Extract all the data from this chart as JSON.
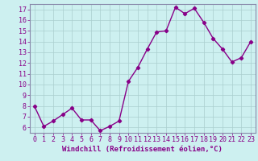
{
  "x": [
    0,
    1,
    2,
    3,
    4,
    5,
    6,
    7,
    8,
    9,
    10,
    11,
    12,
    13,
    14,
    15,
    16,
    17,
    18,
    19,
    20,
    21,
    22,
    23
  ],
  "y": [
    8,
    6.1,
    6.6,
    7.2,
    7.8,
    6.7,
    6.7,
    5.7,
    6.1,
    6.6,
    10.3,
    11.6,
    13.3,
    14.9,
    15.0,
    17.2,
    16.6,
    17.1,
    15.8,
    14.3,
    13.3,
    12.1,
    12.5,
    14.0
  ],
  "line_color": "#880088",
  "marker": "D",
  "marker_size": 2.2,
  "linewidth": 1.0,
  "xlabel": "Windchill (Refroidissement éolien,°C)",
  "xlim": [
    -0.5,
    23.5
  ],
  "ylim": [
    5.5,
    17.5
  ],
  "yticks": [
    6,
    7,
    8,
    9,
    10,
    11,
    12,
    13,
    14,
    15,
    16,
    17
  ],
  "xticks": [
    0,
    1,
    2,
    3,
    4,
    5,
    6,
    7,
    8,
    9,
    10,
    11,
    12,
    13,
    14,
    15,
    16,
    17,
    18,
    19,
    20,
    21,
    22,
    23
  ],
  "bg_color": "#cdf0f0",
  "grid_color": "#aacece",
  "line_label_color": "#880088",
  "xlabel_fontsize": 6.5,
  "tick_fontsize": 6.0
}
